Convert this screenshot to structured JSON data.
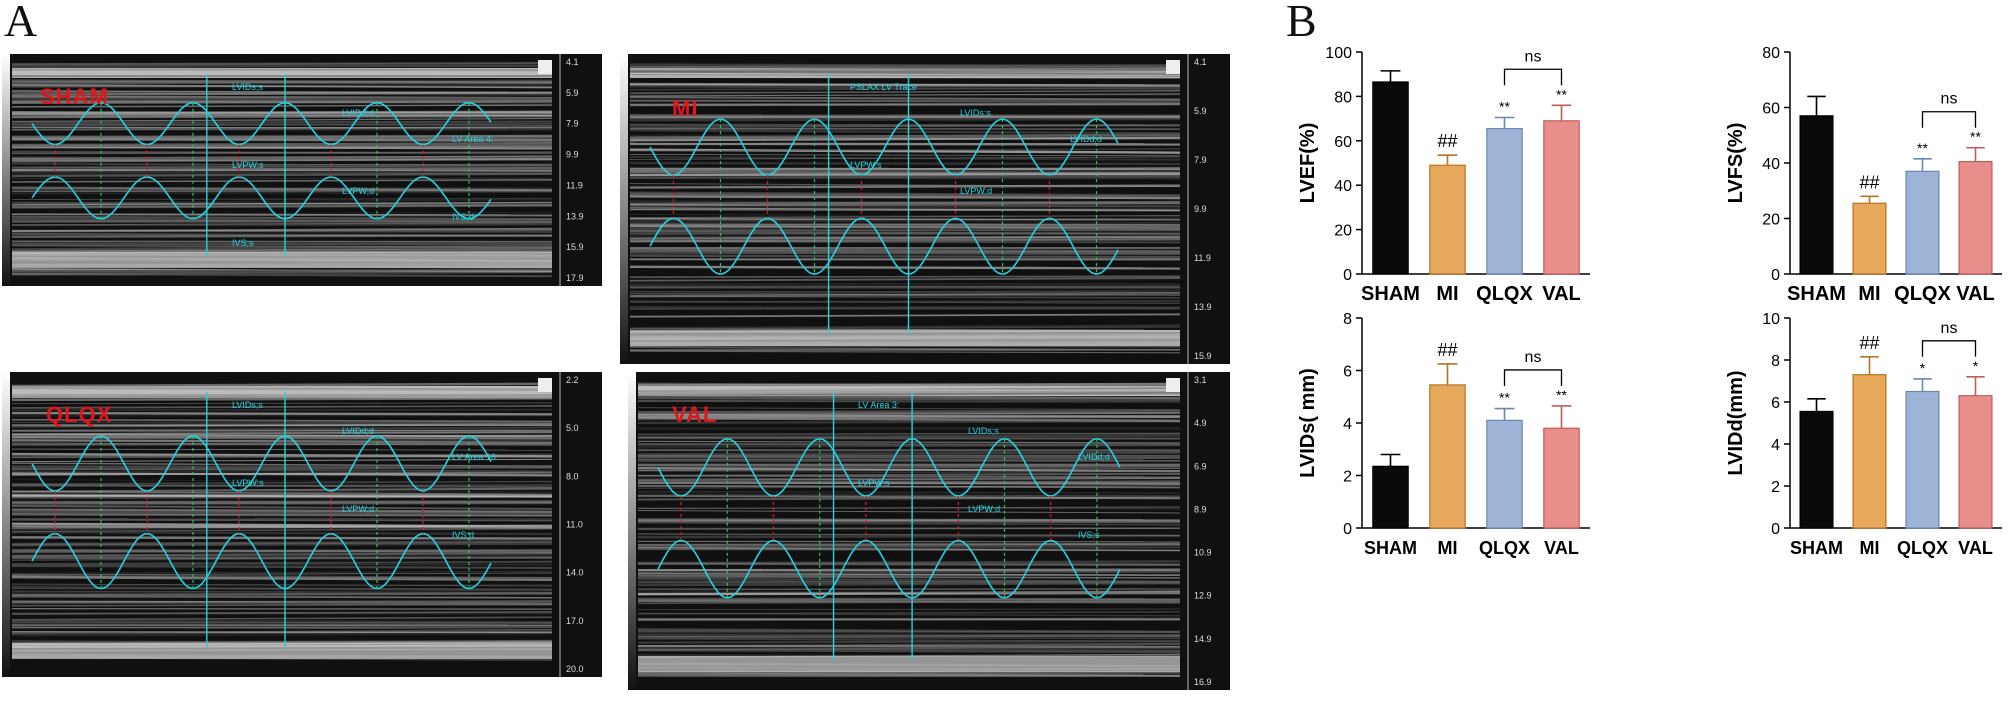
{
  "panels": {
    "a": "A",
    "b": "B"
  },
  "echo": [
    {
      "label": "SHAM",
      "depths": [
        "4.1",
        "5.9",
        "7.9",
        "9.9",
        "11.9",
        "13.9",
        "15.9",
        "17.9"
      ],
      "annotations": [
        "LVIDs;s",
        "LVIDd;d",
        "LV Area 4:",
        "LVPW;s",
        "LVPW;d",
        "IVS;d",
        "IVS;s"
      ]
    },
    {
      "label": "MI",
      "depths": [
        "4.1",
        "5.9",
        "7.9",
        "9.9",
        "11.9",
        "13.9",
        "15.9"
      ],
      "annotations": [
        "PSLAX LV Trace",
        "LVIDs;s",
        "LVIDd;d",
        "LVPW;s",
        "LVPW;d"
      ]
    },
    {
      "label": "QLQX",
      "depths": [
        "2.2",
        "5.0",
        "8.0",
        "11.0",
        "14.0",
        "17.0",
        "20.0"
      ],
      "annotations": [
        "LVIDs;s",
        "LVIDd;d",
        "LV Area 16:",
        "LVPW;s",
        "LVPW;d",
        "IVS;d"
      ]
    },
    {
      "label": "VAL",
      "depths": [
        "3.1",
        "4.9",
        "6.9",
        "8.9",
        "10.9",
        "12.9",
        "14.9",
        "16.9"
      ],
      "annotations": [
        "LV Area 3:",
        "LVIDs;s",
        "LVIDd;d",
        "LVPW;s",
        "LVPW;d",
        "IVS;s"
      ]
    }
  ],
  "colors": {
    "sham": "#0a0a0a",
    "mi": "#e8a85b",
    "qlqx": "#9db4d6",
    "val": "#e88f8c",
    "trace": "#22d3e0",
    "marker_red": "#e01b1b",
    "marker_green": "#22c55e"
  },
  "chart_data": [
    {
      "type": "bar",
      "categories": [
        "SHAM",
        "MI",
        "QLQX",
        "VAL"
      ],
      "values": [
        86.5,
        49,
        65.5,
        69
      ],
      "errors": [
        5,
        4.5,
        5,
        7
      ],
      "ylabel": "LVEF(%)",
      "ylim": [
        0,
        100
      ],
      "yticks": [
        "0",
        "20",
        "40",
        "60",
        "80",
        "100"
      ],
      "marks": [
        "",
        "##",
        "**",
        "**"
      ],
      "bracket": {
        "from": 2,
        "to": 3,
        "label": "ns"
      }
    },
    {
      "type": "bar",
      "categories": [
        "SHAM",
        "MI",
        "QLQX",
        "VAL"
      ],
      "values": [
        57,
        25.5,
        37,
        40.5
      ],
      "errors": [
        7,
        2.5,
        4.5,
        5
      ],
      "ylabel": "LVFS(%)",
      "ylim": [
        0,
        80
      ],
      "yticks": [
        "0",
        "20",
        "40",
        "60",
        "80"
      ],
      "marks": [
        "",
        "##",
        "**",
        "**"
      ],
      "bracket": {
        "from": 2,
        "to": 3,
        "label": "ns"
      }
    },
    {
      "type": "bar",
      "categories": [
        "SHAM",
        "MI",
        "QLQX",
        "VAL"
      ],
      "values": [
        2.35,
        5.45,
        4.1,
        3.8
      ],
      "errors": [
        0.45,
        0.8,
        0.45,
        0.85
      ],
      "ylabel": "LVIDs( mm)",
      "ylim": [
        0,
        8
      ],
      "yticks": [
        "0",
        "2",
        "4",
        "6",
        "8"
      ],
      "marks": [
        "",
        "##",
        "**",
        "**"
      ],
      "bracket": {
        "from": 2,
        "to": 3,
        "label": "ns"
      }
    },
    {
      "type": "bar",
      "categories": [
        "SHAM",
        "MI",
        "QLQX",
        "VAL"
      ],
      "values": [
        5.55,
        7.3,
        6.5,
        6.3
      ],
      "errors": [
        0.6,
        0.85,
        0.6,
        0.9
      ],
      "ylabel": "LVIDd(mm)",
      "ylim": [
        0,
        10
      ],
      "yticks": [
        "0",
        "2",
        "4",
        "6",
        "8",
        "10"
      ],
      "marks": [
        "",
        "##",
        "*",
        "*"
      ],
      "bracket": {
        "from": 2,
        "to": 3,
        "label": "ns"
      }
    }
  ]
}
